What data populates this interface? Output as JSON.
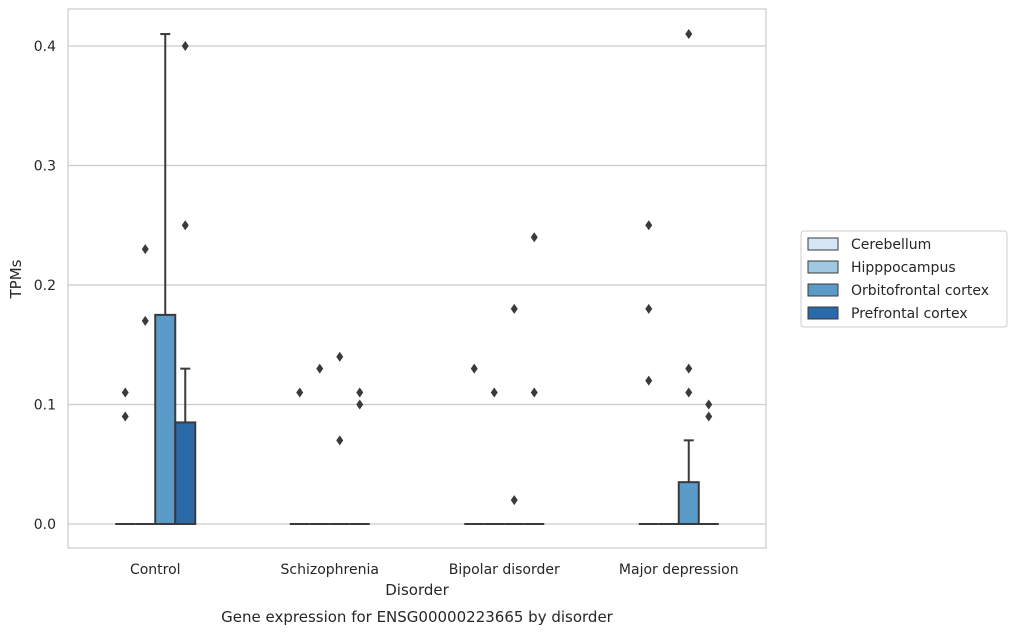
{
  "chart_data": {
    "type": "box",
    "title": "",
    "caption": "Gene expression for ENSG00000223665 by disorder",
    "xlabel": "Disorder",
    "ylabel": "TPMs",
    "ylim": [
      -0.02,
      0.43
    ],
    "yticks": [
      0.0,
      0.1,
      0.2,
      0.3,
      0.4
    ],
    "ytick_labels": [
      "0.0",
      "0.1",
      "0.2",
      "0.3",
      "0.4"
    ],
    "grid": "y",
    "legend_placement": "right",
    "categories": [
      "Control",
      "Schizophrenia",
      "Bipolar disorder",
      "Major depression"
    ],
    "series": [
      {
        "name": "Cerebellum",
        "color": "#d6e6f4",
        "boxes": [
          {
            "q1": 0,
            "median": 0,
            "q3": 0,
            "whislo": 0,
            "whishi": 0,
            "fliers": [
              0.09,
              0.11
            ]
          },
          {
            "q1": 0,
            "median": 0,
            "q3": 0,
            "whislo": 0,
            "whishi": 0,
            "fliers": [
              0.11
            ]
          },
          {
            "q1": 0,
            "median": 0,
            "q3": 0,
            "whislo": 0,
            "whishi": 0,
            "fliers": [
              0.13
            ]
          },
          {
            "q1": 0,
            "median": 0,
            "q3": 0,
            "whislo": 0,
            "whishi": 0,
            "fliers": [
              0.12,
              0.18,
              0.25
            ]
          }
        ]
      },
      {
        "name": "Hipppocampus",
        "color": "#9fc9e0",
        "boxes": [
          {
            "q1": 0,
            "median": 0,
            "q3": 0,
            "whislo": 0,
            "whishi": 0,
            "fliers": [
              0.17,
              0.23
            ]
          },
          {
            "q1": 0,
            "median": 0,
            "q3": 0,
            "whislo": 0,
            "whishi": 0,
            "fliers": [
              0.13
            ]
          },
          {
            "q1": 0,
            "median": 0,
            "q3": 0,
            "whislo": 0,
            "whishi": 0,
            "fliers": [
              0.11
            ]
          },
          {
            "q1": 0,
            "median": 0,
            "q3": 0,
            "whislo": 0,
            "whishi": 0,
            "fliers": []
          }
        ]
      },
      {
        "name": "Orbitofrontal cortex",
        "color": "#5a9bc9",
        "boxes": [
          {
            "q1": 0,
            "median": 0,
            "q3": 0.175,
            "whislo": 0,
            "whishi": 0.41,
            "fliers": []
          },
          {
            "q1": 0,
            "median": 0,
            "q3": 0,
            "whislo": 0,
            "whishi": 0,
            "fliers": [
              0.07,
              0.14
            ]
          },
          {
            "q1": 0,
            "median": 0,
            "q3": 0,
            "whislo": 0,
            "whishi": 0,
            "fliers": [
              0.02,
              0.18
            ]
          },
          {
            "q1": 0,
            "median": 0,
            "q3": 0.035,
            "whislo": 0,
            "whishi": 0.07,
            "fliers": [
              0.11,
              0.13,
              0.41
            ]
          }
        ]
      },
      {
        "name": "Prefrontal cortex",
        "color": "#2a6aa8",
        "boxes": [
          {
            "q1": 0,
            "median": 0,
            "q3": 0.085,
            "whislo": 0,
            "whishi": 0.13,
            "fliers": [
              0.25,
              0.4
            ]
          },
          {
            "q1": 0,
            "median": 0,
            "q3": 0,
            "whislo": 0,
            "whishi": 0,
            "fliers": [
              0.1,
              0.11
            ]
          },
          {
            "q1": 0,
            "median": 0,
            "q3": 0,
            "whislo": 0,
            "whishi": 0,
            "fliers": [
              0.11,
              0.24
            ]
          },
          {
            "q1": 0,
            "median": 0,
            "q3": 0,
            "whislo": 0,
            "whishi": 0,
            "fliers": [
              0.09,
              0.1
            ]
          }
        ]
      }
    ]
  }
}
